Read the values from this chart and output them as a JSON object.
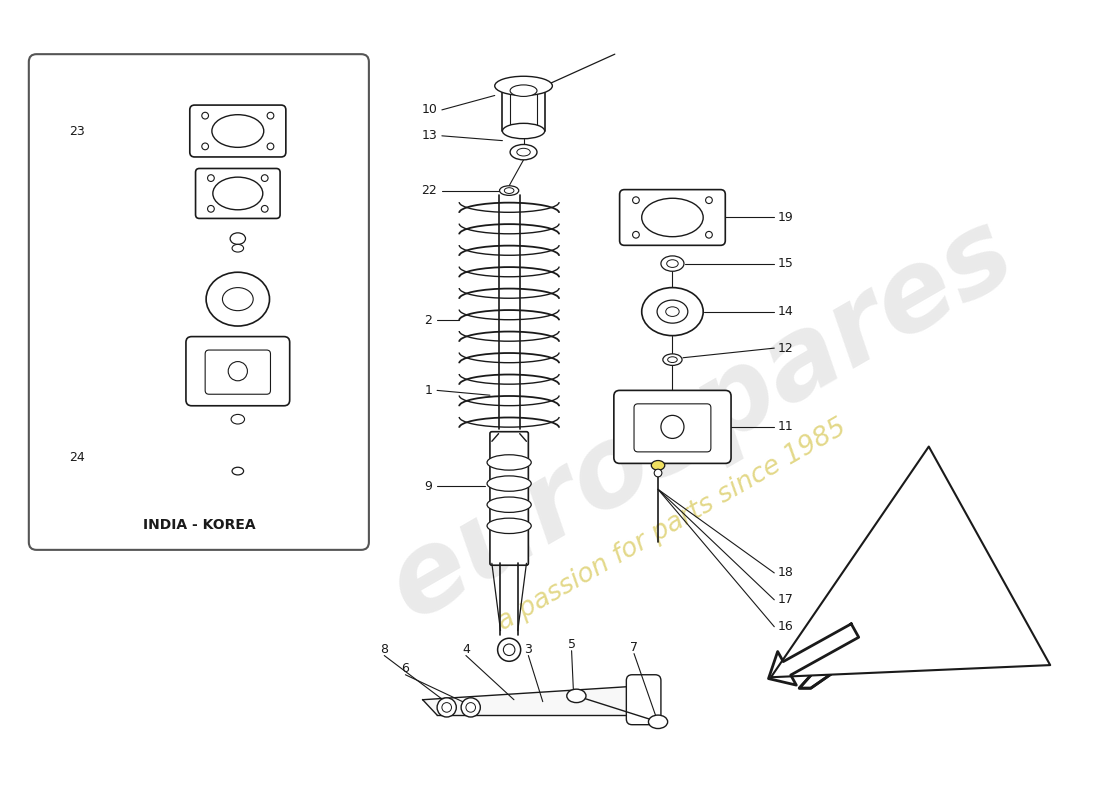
{
  "bg": "#ffffff",
  "lc": "#1a1a1a",
  "wm1": "eurospares",
  "wm2": "a passion for parts since 1985",
  "wm1_color": "#cccccc",
  "wm2_color": "#d4c44a",
  "box_label": "INDIA - KOREA",
  "figsize": [
    11.0,
    8.0
  ],
  "dpi": 100,
  "xlim": [
    0,
    1100
  ],
  "ylim": [
    0,
    800
  ]
}
